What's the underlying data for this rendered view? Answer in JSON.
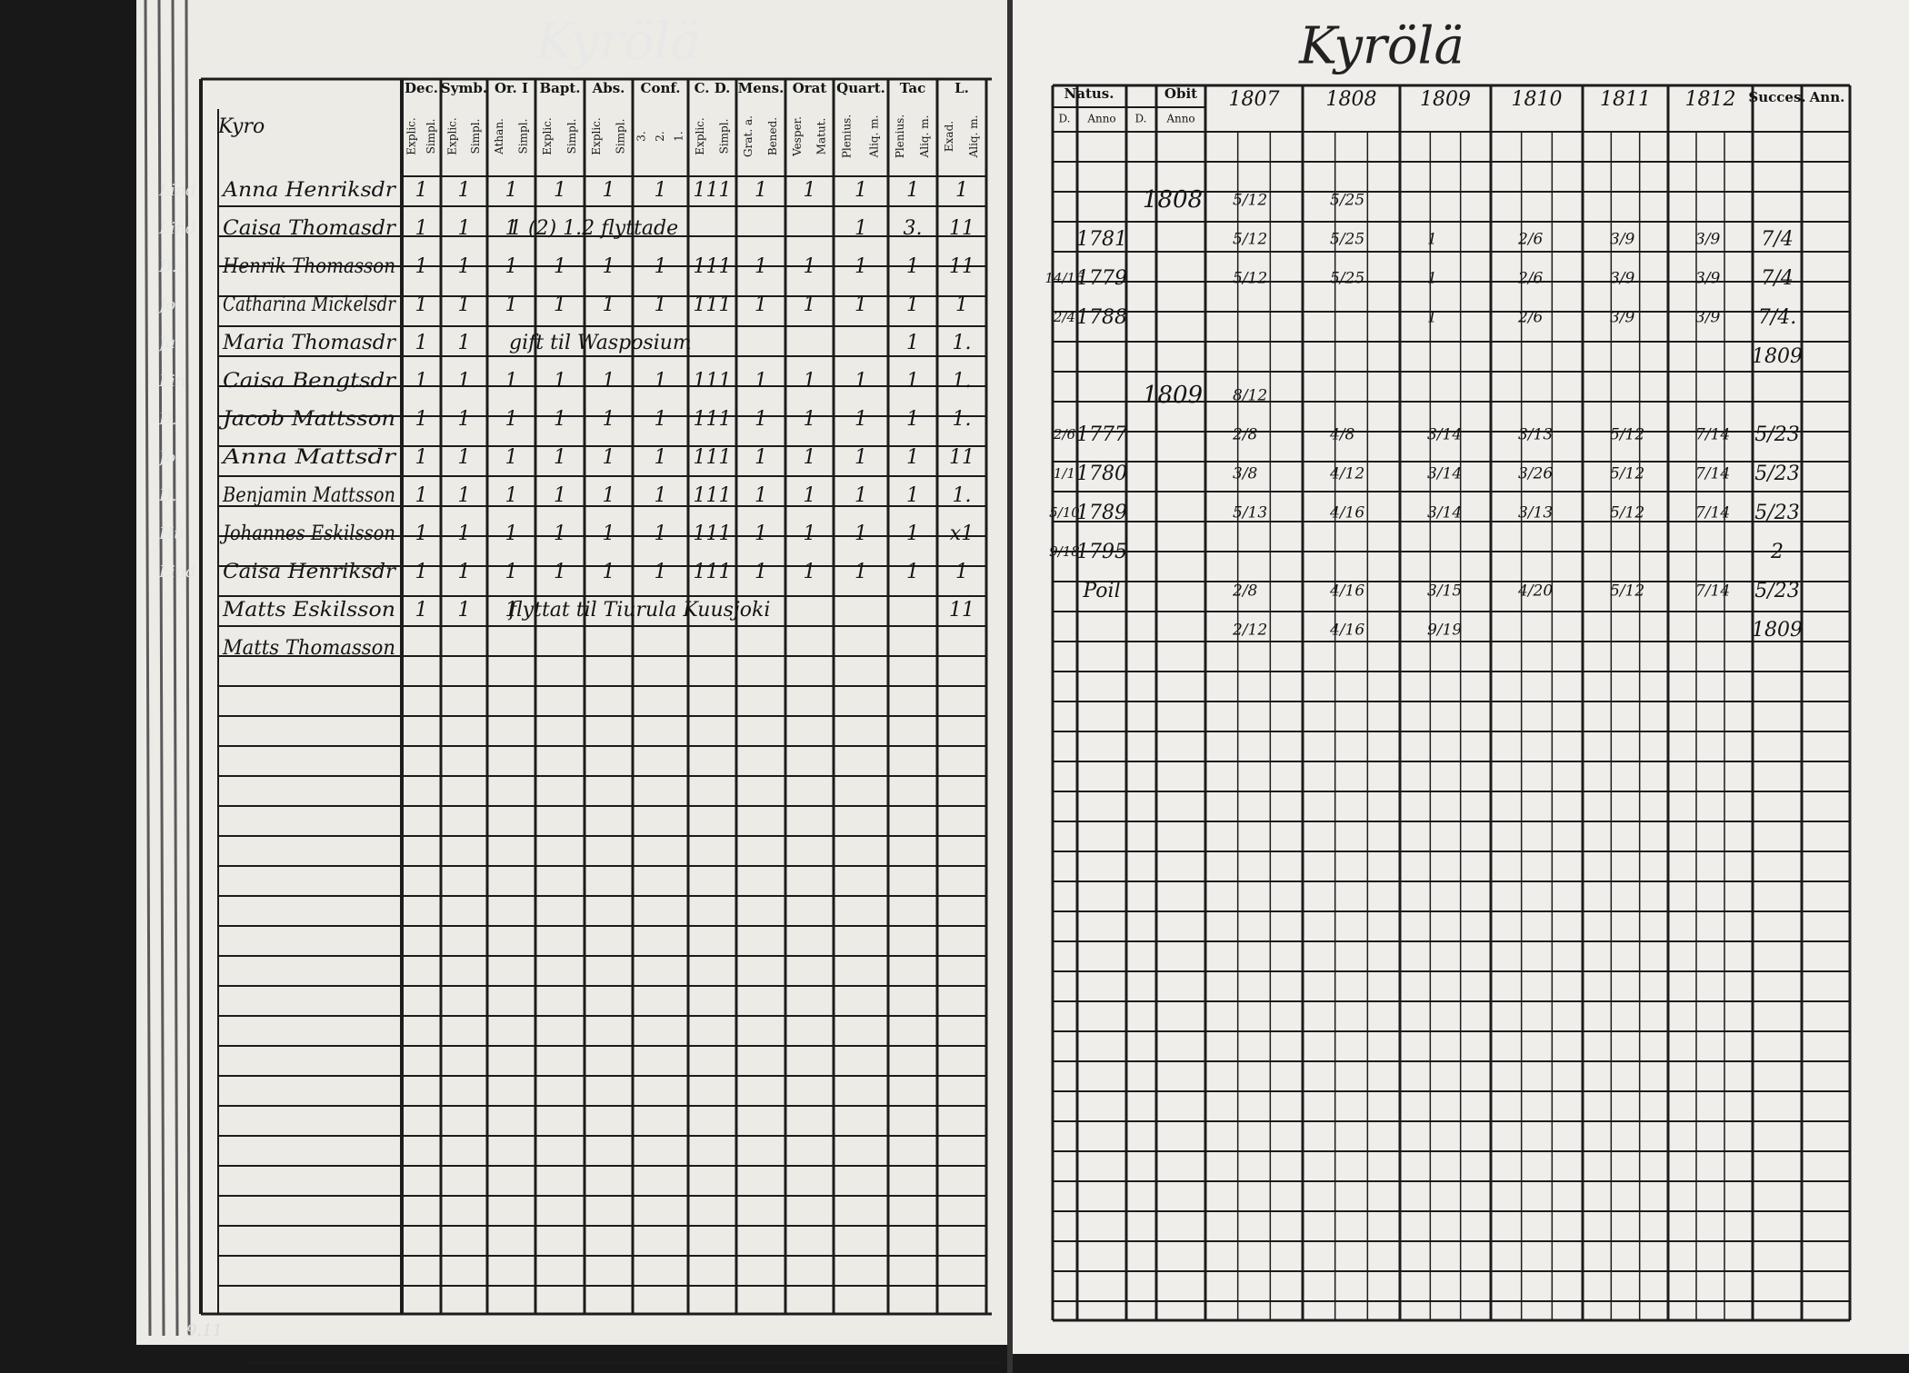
{
  "left_page": {
    "title": "Kyrölä",
    "village": "Kyro",
    "columns": [
      {
        "label": "Dec.",
        "sub": [
          "Explic.",
          "Simpl."
        ]
      },
      {
        "label": "Symb.",
        "sub": [
          "Explic.",
          "Simpl."
        ]
      },
      {
        "label": "Or. I",
        "sub": [
          "Athan.",
          "Simpl."
        ]
      },
      {
        "label": "Bapt.",
        "sub": [
          "Explic.",
          "Simpl."
        ]
      },
      {
        "label": "Abs.",
        "sub": [
          "Explic.",
          "Simpl."
        ]
      },
      {
        "label": "Conf.",
        "sub": [
          "3.",
          "2.",
          "1."
        ]
      },
      {
        "label": "C. D.",
        "sub": [
          "Explic.",
          "Simpl."
        ]
      },
      {
        "label": "Mens.",
        "sub": [
          "Grat. a.",
          "Bened."
        ]
      },
      {
        "label": "Orat",
        "sub": [
          "Vesper.",
          "Matut."
        ]
      },
      {
        "label": "Quart.",
        "sub": [
          "Plenius.",
          "Aliq. m."
        ]
      },
      {
        "label": "Tac",
        "sub": [
          "Plenius.",
          "Aliq. m."
        ]
      },
      {
        "label": "L.",
        "sub": [
          "Exad.",
          "Aliq. m."
        ]
      }
    ],
    "rows": [
      {
        "margin": "Lind",
        "name": "Anna Henriksdr",
        "cells": [
          "1",
          "1",
          "1",
          "1",
          "1",
          "1",
          "111",
          "1",
          "1",
          "1",
          "1",
          "1"
        ]
      },
      {
        "margin": "Lind",
        "name": "Caisa Thomasdr",
        "cells": [
          "1",
          "1",
          "1",
          null,
          null,
          null,
          null,
          null,
          null,
          "1",
          "3.",
          "11"
        ],
        "note": "1 (2) 1.2 flyttade"
      },
      {
        "margin": "D.",
        "name": "Henrik Thomasson",
        "cells": [
          "1",
          "1",
          "1",
          "1",
          "1",
          "1",
          "111",
          "1",
          "1",
          "1",
          "1",
          "11"
        ]
      },
      {
        "margin": "Jo",
        "name": "Catharina Mickelsdr",
        "cells": [
          "1",
          "1",
          "1",
          "1",
          "1",
          "1",
          "111",
          "1",
          "1",
          "1",
          "1",
          "1"
        ]
      },
      {
        "margin": "Ja",
        "name": "Maria Thomasdr",
        "cells": [
          "1",
          "1",
          null,
          null,
          null,
          null,
          null,
          null,
          null,
          null,
          "1",
          "1."
        ],
        "note": "gift til Wasposium"
      },
      {
        "margin": "Lin",
        "name": "Caisa Bengtsdr",
        "cells": [
          "1",
          "1",
          "1",
          "1",
          "1",
          "1",
          "111",
          "1",
          "1",
          "1",
          "1",
          "1."
        ]
      },
      {
        "margin": "D.",
        "name": "Jacob Mattsson",
        "cells": [
          "1",
          "1",
          "1",
          "1",
          "1",
          "1",
          "111",
          "1",
          "1",
          "1",
          "1",
          "1."
        ]
      },
      {
        "margin": "Jo",
        "name": "Anna Mattsdr",
        "cells": [
          "1",
          "1",
          "1",
          "1",
          "1",
          "1",
          "111",
          "1",
          "1",
          "1",
          "1",
          "11"
        ]
      },
      {
        "margin": "D.",
        "name": "Benjamin Mattsson",
        "cells": [
          "1",
          "1",
          "1",
          "1",
          "1",
          "1",
          "111",
          "1",
          "1",
          "1",
          "1",
          "1."
        ]
      },
      {
        "margin": "Hu",
        "name": "Johannes Eskilsson",
        "cells": [
          "1",
          "1",
          "1",
          "1",
          "1",
          "1",
          "111",
          "1",
          "1",
          "1",
          "1",
          "x1"
        ]
      },
      {
        "margin": "Lind",
        "name": "Caisa Henriksdr",
        "cells": [
          "1",
          "1",
          "1",
          "1",
          "1",
          "1",
          "111",
          "1",
          "1",
          "1",
          "1",
          "1"
        ]
      },
      {
        "name": "Matts Eskilsson",
        "cells": [
          "1",
          "1",
          "1",
          null,
          null,
          null,
          null,
          null,
          null,
          null,
          null,
          "11"
        ],
        "note": "flyttat til Tiurula Kuusjoki"
      },
      {
        "name": "Matts Thomasson"
      }
    ],
    "folio": "9.11"
  },
  "right_page": {
    "title": "Kyrölä",
    "natus": "Natus.",
    "obit": "Obit",
    "natus_day": "D.",
    "natus_anno": "Anno",
    "obit_day": "D.",
    "obit_anno": "Anno",
    "years": [
      "1807",
      "1808",
      "1809",
      "1810",
      "1811",
      "1812"
    ],
    "succes": "Succes.",
    "ann": "Ann.",
    "rows": [
      {
        "obit_year": "1808",
        "entries": [
          "5/12",
          "5/25",
          null,
          null,
          null,
          null
        ]
      },
      {
        "natus_year": "1781",
        "entries": [
          "5/12",
          "5/25",
          "1",
          "2/6",
          "3/9",
          "3/9"
        ],
        "succes": "7/4"
      },
      {
        "natus_day": "14/16",
        "natus_year": "1779",
        "entries": [
          "5/12",
          "5/25",
          "1",
          "2/6",
          "3/9",
          "3/9"
        ],
        "succes": "7/4"
      },
      {
        "natus_day": "2/4",
        "natus_year": "1788",
        "entries": [
          null,
          null,
          "1",
          "2/6",
          "3/9",
          "3/9"
        ],
        "succes": "7/4."
      },
      {
        "entries": [
          null,
          null,
          null,
          null,
          null,
          null
        ],
        "succes": "1809"
      },
      {
        "obit_year": "1809",
        "entries": [
          "8/12",
          null,
          null,
          null,
          null,
          null
        ]
      },
      {
        "natus_day": "2/6",
        "natus_year": "1777",
        "entries": [
          "2/8",
          "4/8",
          "3/14",
          "3/13",
          "5/12",
          "7/14"
        ],
        "succes": "5/23"
      },
      {
        "natus_day": "1/1",
        "natus_year": "1780",
        "entries": [
          "3/8",
          "4/12",
          "3/14",
          "3/26",
          "5/12",
          "7/14"
        ],
        "succes": "5/23"
      },
      {
        "natus_day": "5/10",
        "natus_year": "1789",
        "entries": [
          "5/13",
          "4/16",
          "3/14",
          "3/13",
          "5/12",
          "7/14"
        ],
        "succes": "5/23"
      },
      {
        "natus_day": "9/18",
        "natus_year": "1795",
        "entries": [
          null,
          null,
          null,
          null,
          null,
          null
        ],
        "succes": "2"
      },
      {
        "natus_year": "Poil",
        "entries": [
          "2/8",
          "4/16",
          "3/15",
          "4/20",
          "5/12",
          "7/14"
        ],
        "succes": "5/23"
      },
      {
        "entries": [
          "2/12",
          "4/16",
          "9/19",
          null,
          null,
          null
        ],
        "succes": "1809"
      }
    ]
  }
}
